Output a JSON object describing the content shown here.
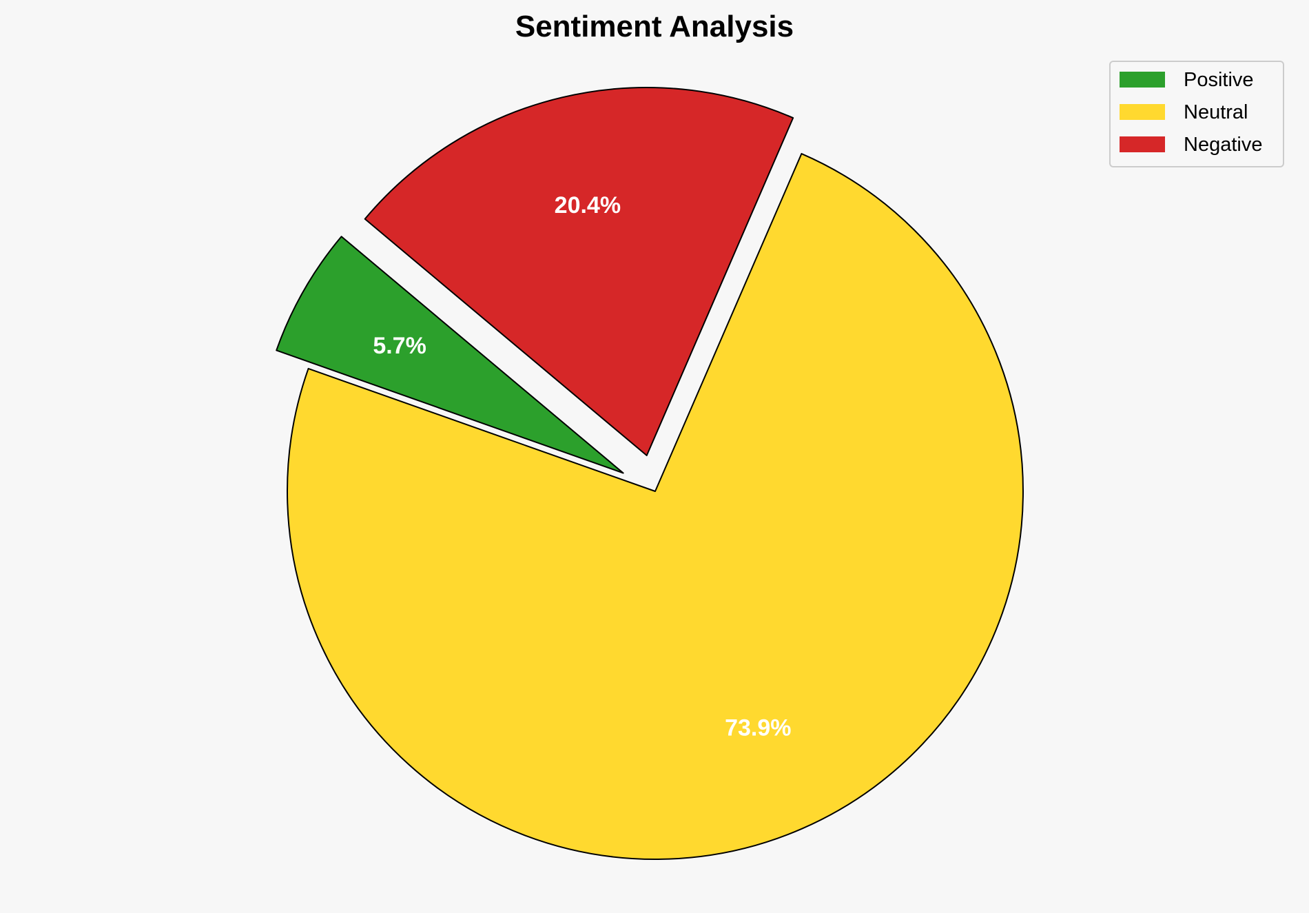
{
  "chart_data": {
    "type": "pie",
    "title": "Sentiment Analysis",
    "categories": [
      "Positive",
      "Neutral",
      "Negative"
    ],
    "values": [
      5.7,
      73.9,
      20.4
    ],
    "labels": [
      "5.7%",
      "73.9%",
      "20.4%"
    ],
    "colors": [
      "#2ca02c",
      "#ffd92f",
      "#d62728"
    ],
    "explode": [
      0.1,
      0,
      0.1
    ],
    "start_angle_deg": 140,
    "direction": "counterclockwise",
    "label_distance": 0.7,
    "edge_color": "#000000",
    "label_color": "#ffffff",
    "background": "#f7f7f7",
    "legend": {
      "placement": "top-right",
      "entries": [
        "Positive",
        "Neutral",
        "Negative"
      ]
    }
  }
}
